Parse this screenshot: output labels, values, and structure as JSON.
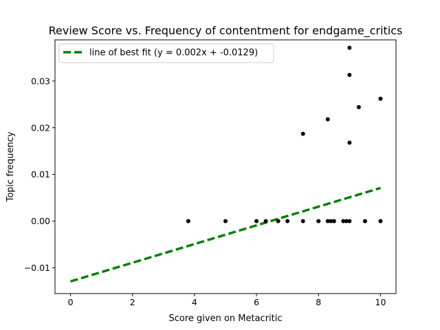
{
  "chart_data": {
    "type": "scatter",
    "title": "Review Score vs. Frequency of contentment for endgame_critics",
    "xlabel": "Score given on Metacritic",
    "ylabel": "Topic frequency",
    "xlim": [
      -0.5,
      10.5
    ],
    "ylim": [
      -0.0155,
      0.0388
    ],
    "xticks": [
      0,
      2,
      4,
      6,
      8,
      10
    ],
    "xtick_labels": [
      "0",
      "2",
      "4",
      "6",
      "8",
      "10"
    ],
    "yticks": [
      -0.01,
      0.0,
      0.01,
      0.02,
      0.03
    ],
    "ytick_labels": [
      "−0.01",
      "0.00",
      "0.01",
      "0.02",
      "0.03"
    ],
    "grid": false,
    "legend_position": "top-left",
    "series": [
      {
        "kind": "scatter",
        "color": "#000000",
        "points": [
          {
            "x": 3.8,
            "y": 0.0
          },
          {
            "x": 5.0,
            "y": 0.0
          },
          {
            "x": 6.0,
            "y": 0.0
          },
          {
            "x": 6.3,
            "y": 0.0
          },
          {
            "x": 6.7,
            "y": 0.0
          },
          {
            "x": 7.0,
            "y": 0.0
          },
          {
            "x": 7.5,
            "y": 0.0
          },
          {
            "x": 7.5,
            "y": 0.0187
          },
          {
            "x": 8.0,
            "y": 0.0
          },
          {
            "x": 8.3,
            "y": 0.0
          },
          {
            "x": 8.3,
            "y": 0.0218
          },
          {
            "x": 8.4,
            "y": 0.0
          },
          {
            "x": 8.5,
            "y": 0.0
          },
          {
            "x": 8.8,
            "y": 0.0
          },
          {
            "x": 8.9,
            "y": 0.0
          },
          {
            "x": 9.0,
            "y": 0.0
          },
          {
            "x": 9.0,
            "y": 0.0168
          },
          {
            "x": 9.0,
            "y": 0.0313
          },
          {
            "x": 9.0,
            "y": 0.0371
          },
          {
            "x": 9.3,
            "y": 0.0244
          },
          {
            "x": 9.5,
            "y": 0.0
          },
          {
            "x": 10.0,
            "y": 0.0
          },
          {
            "x": 10.0,
            "y": 0.0262
          }
        ]
      },
      {
        "kind": "line",
        "name": "line of best fit (y = 0.002x + -0.0129)",
        "color": "#008000",
        "dash": "dashed",
        "slope": 0.002,
        "intercept": -0.0129,
        "x_range": [
          0,
          10
        ]
      }
    ]
  }
}
